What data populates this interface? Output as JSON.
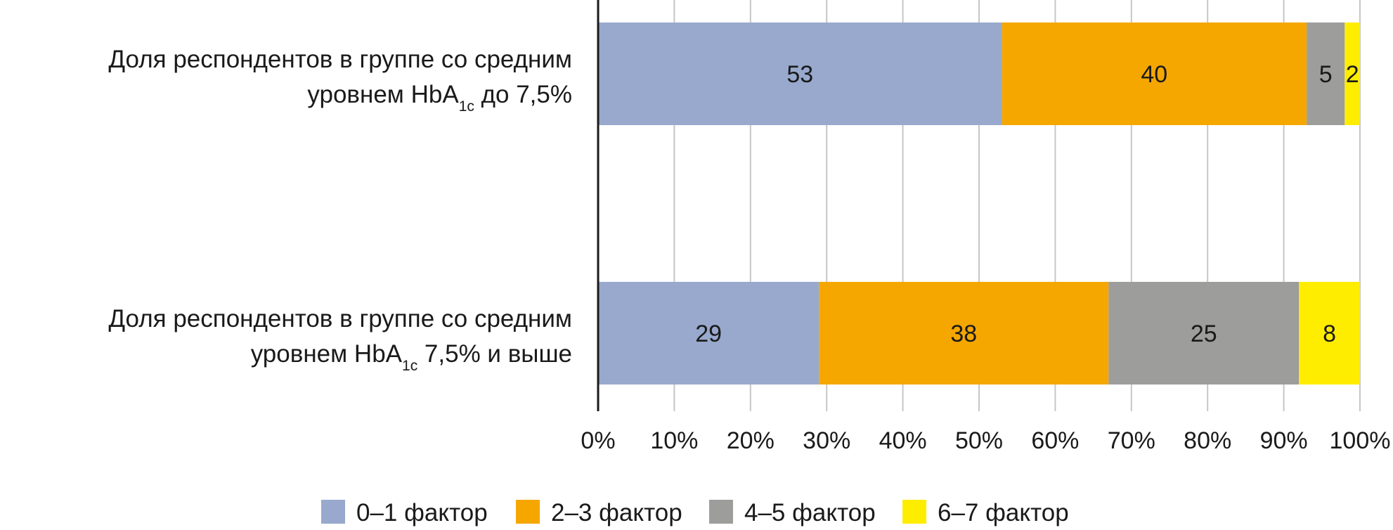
{
  "chart_data": {
    "type": "bar",
    "orientation": "horizontal",
    "stacked": true,
    "categories": [
      {
        "line1": "Доля респондентов в группе со средним",
        "line2_pre": "уровнем HbA",
        "line2_sub": "1c",
        "line2_post": " до 7,5%"
      },
      {
        "line1": "Доля респондентов в группе со средним",
        "line2_pre": "уровнем HbA",
        "line2_sub": "1c",
        "line2_post": " 7,5% и выше"
      }
    ],
    "series": [
      {
        "name": "0–1 фактор",
        "color": "#98a9cd",
        "values": [
          53,
          29
        ]
      },
      {
        "name": "2–3 фактор",
        "color": "#f5a700",
        "values": [
          40,
          38
        ]
      },
      {
        "name": "4–5 фактор",
        "color": "#9d9d9c",
        "values": [
          5,
          25
        ]
      },
      {
        "name": "6–7 фактор",
        "color": "#ffed00",
        "values": [
          2,
          8
        ]
      }
    ],
    "xlim": [
      0,
      100
    ],
    "xticks": [
      "0%",
      "10%",
      "20%",
      "30%",
      "40%",
      "50%",
      "60%",
      "70%",
      "80%",
      "90%",
      "100%"
    ],
    "grid": true,
    "legend_position": "bottom",
    "grid_color": "#c6c6c6",
    "axis_color": "#1a1a1a"
  }
}
